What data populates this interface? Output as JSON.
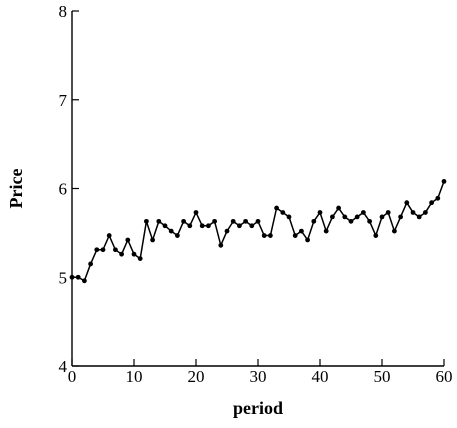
{
  "chart_data": {
    "type": "line",
    "title": "",
    "xlabel": "period",
    "ylabel": "Price",
    "xlim": [
      0,
      60
    ],
    "ylim": [
      4,
      8
    ],
    "xticks": [
      0,
      10,
      20,
      30,
      40,
      50,
      60
    ],
    "xtick_labels": [
      "0",
      "10",
      "20",
      "30",
      "40",
      "50",
      "60"
    ],
    "yticks": [
      4,
      5,
      6,
      7,
      8
    ],
    "ytick_labels": [
      "4",
      "5",
      "6",
      "7",
      "8"
    ],
    "grid": false,
    "color": "#000000",
    "series": [
      {
        "x": [
          0,
          1,
          2,
          3,
          4,
          5,
          6,
          7,
          8,
          9,
          10,
          11,
          12,
          13,
          14,
          15,
          16,
          17,
          18,
          19,
          20,
          21,
          22,
          23,
          24,
          25,
          26,
          27,
          28,
          29,
          30,
          31,
          32,
          33,
          34,
          35,
          36,
          37,
          38,
          39,
          40,
          41,
          42,
          43,
          44,
          45,
          46,
          47,
          48,
          49,
          50,
          51,
          52,
          53,
          54,
          55,
          56,
          57,
          58,
          59,
          60
        ],
        "y": [
          5.0,
          5.0,
          4.96,
          5.15,
          5.31,
          5.31,
          5.47,
          5.31,
          5.26,
          5.42,
          5.26,
          5.21,
          5.63,
          5.42,
          5.63,
          5.58,
          5.52,
          5.47,
          5.63,
          5.58,
          5.73,
          5.58,
          5.58,
          5.63,
          5.36,
          5.52,
          5.63,
          5.58,
          5.63,
          5.58,
          5.63,
          5.47,
          5.47,
          5.78,
          5.73,
          5.68,
          5.47,
          5.52,
          5.42,
          5.63,
          5.73,
          5.52,
          5.68,
          5.78,
          5.68,
          5.63,
          5.68,
          5.73,
          5.63,
          5.47,
          5.68,
          5.73,
          5.52,
          5.68,
          5.84,
          5.73,
          5.68,
          5.73,
          5.84,
          5.89,
          6.08
        ]
      }
    ]
  }
}
